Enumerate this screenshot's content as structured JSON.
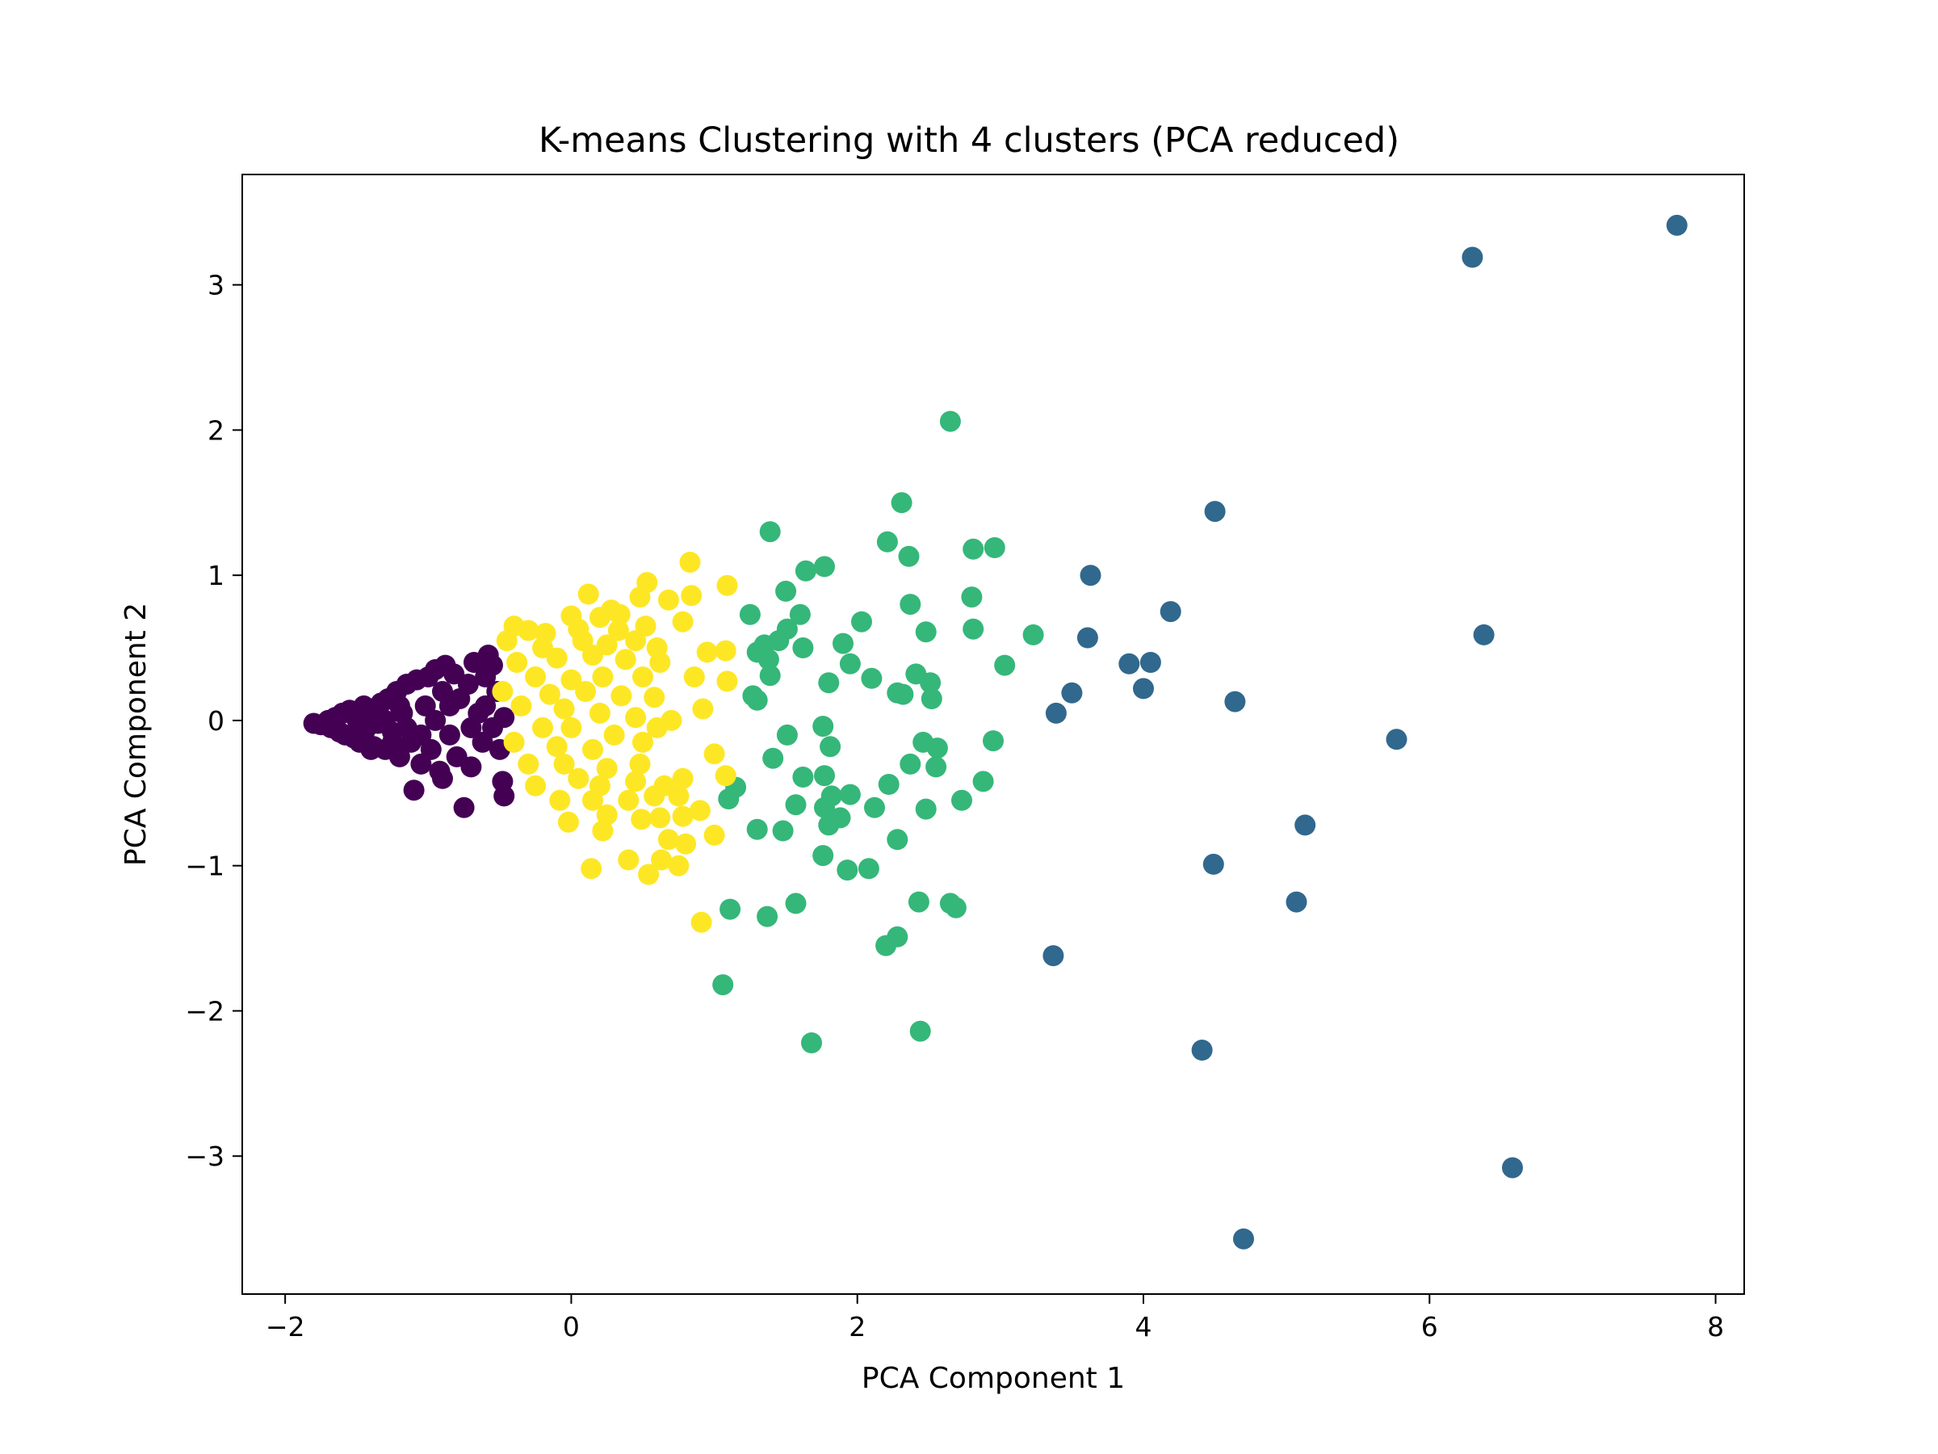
{
  "chart_data": {
    "type": "scatter",
    "title": "K-means Clustering with 4 clusters (PCA reduced)",
    "xlabel": "PCA Component 1",
    "ylabel": "PCA Component 2",
    "xlim": [
      -2.3,
      8.2
    ],
    "ylim": [
      -3.95,
      3.76
    ],
    "xticks": [
      -2,
      0,
      2,
      4,
      6,
      8
    ],
    "yticks": [
      -3,
      -2,
      -1,
      0,
      1,
      2,
      3
    ],
    "grid": false,
    "legend": "none",
    "series": [
      {
        "cluster": 0,
        "color": "#440154",
        "points": [
          [
            -1.8,
            -0.02
          ],
          [
            -1.75,
            -0.03
          ],
          [
            -1.7,
            0.0
          ],
          [
            -1.68,
            -0.05
          ],
          [
            -1.65,
            0.02
          ],
          [
            -1.62,
            -0.08
          ],
          [
            -1.6,
            0.05
          ],
          [
            -1.58,
            -0.1
          ],
          [
            -1.55,
            0.07
          ],
          [
            -1.52,
            -0.12
          ],
          [
            -1.5,
            0.01
          ],
          [
            -1.48,
            -0.15
          ],
          [
            -1.45,
            0.1
          ],
          [
            -1.43,
            -0.05
          ],
          [
            -1.4,
            0.08
          ],
          [
            -1.38,
            -0.18
          ],
          [
            -1.35,
            -0.02
          ],
          [
            -1.33,
            0.12
          ],
          [
            -1.3,
            -0.2
          ],
          [
            -1.28,
            0.15
          ],
          [
            -1.25,
            -0.08
          ],
          [
            -1.22,
            0.2
          ],
          [
            -1.2,
            -0.25
          ],
          [
            -1.18,
            0.05
          ],
          [
            -1.15,
            0.25
          ],
          [
            -1.12,
            -0.15
          ],
          [
            -1.1,
            -0.48
          ],
          [
            -1.08,
            0.28
          ],
          [
            -1.05,
            -0.3
          ],
          [
            -1.02,
            0.1
          ],
          [
            -1.0,
            0.3
          ],
          [
            -0.98,
            -0.2
          ],
          [
            -0.95,
            0.35
          ],
          [
            -0.92,
            -0.35
          ],
          [
            -0.9,
            0.2
          ],
          [
            -0.88,
            0.38
          ],
          [
            -0.85,
            -0.1
          ],
          [
            -0.82,
            0.32
          ],
          [
            -0.8,
            -0.25
          ],
          [
            -0.78,
            0.15
          ],
          [
            -0.75,
            -0.6
          ],
          [
            -0.72,
            0.25
          ],
          [
            -0.7,
            -0.32
          ],
          [
            -0.68,
            0.4
          ],
          [
            -0.65,
            0.05
          ],
          [
            -0.62,
            -0.15
          ],
          [
            -0.6,
            0.3
          ],
          [
            -0.58,
            0.45
          ],
          [
            -0.55,
            -0.05
          ],
          [
            -0.52,
            0.2
          ],
          [
            -0.5,
            -0.2
          ],
          [
            -0.48,
            -0.42
          ],
          [
            -0.47,
            -0.52
          ],
          [
            -0.47,
            0.02
          ],
          [
            -0.55,
            0.38
          ],
          [
            -1.3,
            0.0
          ],
          [
            -1.15,
            -0.05
          ],
          [
            -0.95,
            0.0
          ],
          [
            -0.85,
            0.1
          ],
          [
            -1.45,
            -0.1
          ],
          [
            -1.35,
            0.05
          ],
          [
            -1.25,
            -0.15
          ],
          [
            -1.05,
            -0.1
          ],
          [
            -0.7,
            -0.05
          ],
          [
            -0.6,
            0.1
          ],
          [
            -0.9,
            -0.4
          ],
          [
            -1.4,
            -0.2
          ],
          [
            -1.2,
            0.1
          ]
        ]
      },
      {
        "cluster": 1,
        "color": "#31688e",
        "points": [
          [
            7.73,
            3.41
          ],
          [
            6.3,
            3.19
          ],
          [
            6.38,
            0.59
          ],
          [
            6.58,
            -3.08
          ],
          [
            5.77,
            -0.13
          ],
          [
            5.13,
            -0.72
          ],
          [
            5.07,
            -1.25
          ],
          [
            4.7,
            -3.57
          ],
          [
            4.64,
            0.13
          ],
          [
            4.5,
            1.44
          ],
          [
            4.49,
            -0.99
          ],
          [
            4.41,
            -2.27
          ],
          [
            4.19,
            0.75
          ],
          [
            4.05,
            0.4
          ],
          [
            4.0,
            0.22
          ],
          [
            3.9,
            0.39
          ],
          [
            3.63,
            1.0
          ],
          [
            3.61,
            0.57
          ],
          [
            3.5,
            0.19
          ],
          [
            3.39,
            0.05
          ],
          [
            3.37,
            -1.62
          ]
        ]
      },
      {
        "cluster": 2,
        "color": "#35b779",
        "points": [
          [
            2.65,
            2.06
          ],
          [
            2.31,
            1.5
          ],
          [
            1.39,
            1.3
          ],
          [
            2.21,
            1.23
          ],
          [
            2.81,
            1.18
          ],
          [
            2.96,
            1.19
          ],
          [
            2.36,
            1.13
          ],
          [
            1.77,
            1.06
          ],
          [
            1.64,
            1.03
          ],
          [
            1.5,
            0.89
          ],
          [
            2.8,
            0.85
          ],
          [
            2.37,
            0.8
          ],
          [
            1.25,
            0.73
          ],
          [
            1.6,
            0.73
          ],
          [
            2.03,
            0.68
          ],
          [
            1.51,
            0.63
          ],
          [
            2.48,
            0.61
          ],
          [
            2.81,
            0.63
          ],
          [
            3.23,
            0.59
          ],
          [
            1.9,
            0.53
          ],
          [
            1.45,
            0.55
          ],
          [
            1.35,
            0.52
          ],
          [
            1.62,
            0.5
          ],
          [
            1.3,
            0.47
          ],
          [
            1.38,
            0.42
          ],
          [
            1.95,
            0.39
          ],
          [
            3.03,
            0.38
          ],
          [
            2.41,
            0.32
          ],
          [
            1.39,
            0.31
          ],
          [
            2.1,
            0.29
          ],
          [
            2.51,
            0.26
          ],
          [
            1.8,
            0.26
          ],
          [
            2.28,
            0.19
          ],
          [
            1.27,
            0.17
          ],
          [
            2.32,
            0.18
          ],
          [
            1.3,
            0.14
          ],
          [
            2.52,
            0.15
          ],
          [
            1.76,
            -0.04
          ],
          [
            1.51,
            -0.1
          ],
          [
            2.46,
            -0.15
          ],
          [
            2.95,
            -0.14
          ],
          [
            1.81,
            -0.18
          ],
          [
            2.56,
            -0.19
          ],
          [
            1.41,
            -0.26
          ],
          [
            2.55,
            -0.32
          ],
          [
            2.37,
            -0.3
          ],
          [
            1.62,
            -0.39
          ],
          [
            1.77,
            -0.38
          ],
          [
            2.22,
            -0.44
          ],
          [
            1.15,
            -0.46
          ],
          [
            2.88,
            -0.42
          ],
          [
            1.82,
            -0.52
          ],
          [
            1.95,
            -0.51
          ],
          [
            1.1,
            -0.54
          ],
          [
            2.73,
            -0.55
          ],
          [
            1.57,
            -0.58
          ],
          [
            2.12,
            -0.6
          ],
          [
            1.77,
            -0.6
          ],
          [
            2.48,
            -0.61
          ],
          [
            1.88,
            -0.67
          ],
          [
            1.8,
            -0.72
          ],
          [
            1.3,
            -0.75
          ],
          [
            1.48,
            -0.76
          ],
          [
            2.28,
            -0.82
          ],
          [
            1.76,
            -0.93
          ],
          [
            1.93,
            -1.03
          ],
          [
            2.08,
            -1.02
          ],
          [
            1.11,
            -1.3
          ],
          [
            1.57,
            -1.26
          ],
          [
            2.43,
            -1.25
          ],
          [
            2.65,
            -1.26
          ],
          [
            2.69,
            -1.29
          ],
          [
            1.37,
            -1.35
          ],
          [
            2.28,
            -1.49
          ],
          [
            2.2,
            -1.55
          ],
          [
            1.06,
            -1.82
          ],
          [
            2.44,
            -2.14
          ],
          [
            1.68,
            -2.22
          ]
        ]
      },
      {
        "cluster": 3,
        "color": "#fde725",
        "points": [
          [
            0.83,
            1.09
          ],
          [
            1.09,
            0.93
          ],
          [
            0.53,
            0.95
          ],
          [
            0.12,
            0.87
          ],
          [
            0.48,
            0.85
          ],
          [
            0.68,
            0.83
          ],
          [
            0.84,
            0.86
          ],
          [
            0.28,
            0.76
          ],
          [
            0.34,
            0.73
          ],
          [
            0.2,
            0.71
          ],
          [
            0.0,
            0.72
          ],
          [
            -0.4,
            0.65
          ],
          [
            -0.3,
            0.62
          ],
          [
            -0.18,
            0.6
          ],
          [
            0.05,
            0.63
          ],
          [
            0.33,
            0.62
          ],
          [
            0.52,
            0.65
          ],
          [
            0.78,
            0.68
          ],
          [
            -0.45,
            0.55
          ],
          [
            -0.2,
            0.5
          ],
          [
            0.08,
            0.55
          ],
          [
            0.25,
            0.52
          ],
          [
            0.45,
            0.55
          ],
          [
            0.6,
            0.5
          ],
          [
            0.95,
            0.47
          ],
          [
            1.08,
            0.48
          ],
          [
            -0.38,
            0.4
          ],
          [
            -0.1,
            0.43
          ],
          [
            0.15,
            0.45
          ],
          [
            0.38,
            0.42
          ],
          [
            0.62,
            0.4
          ],
          [
            -0.25,
            0.3
          ],
          [
            0.0,
            0.28
          ],
          [
            0.22,
            0.3
          ],
          [
            0.5,
            0.3
          ],
          [
            0.86,
            0.3
          ],
          [
            1.09,
            0.27
          ],
          [
            -0.48,
            0.2
          ],
          [
            -0.15,
            0.18
          ],
          [
            0.1,
            0.2
          ],
          [
            0.35,
            0.17
          ],
          [
            0.58,
            0.16
          ],
          [
            0.92,
            0.08
          ],
          [
            -0.35,
            0.1
          ],
          [
            -0.05,
            0.08
          ],
          [
            0.2,
            0.05
          ],
          [
            0.45,
            0.02
          ],
          [
            0.7,
            0.0
          ],
          [
            -0.2,
            -0.05
          ],
          [
            0.0,
            -0.05
          ],
          [
            0.3,
            -0.1
          ],
          [
            0.6,
            -0.05
          ],
          [
            -0.4,
            -0.15
          ],
          [
            -0.1,
            -0.18
          ],
          [
            0.15,
            -0.2
          ],
          [
            0.5,
            -0.15
          ],
          [
            1.0,
            -0.23
          ],
          [
            -0.3,
            -0.3
          ],
          [
            -0.05,
            -0.3
          ],
          [
            0.25,
            -0.33
          ],
          [
            0.48,
            -0.3
          ],
          [
            1.08,
            -0.38
          ],
          [
            -0.25,
            -0.45
          ],
          [
            0.05,
            -0.4
          ],
          [
            0.2,
            -0.45
          ],
          [
            0.45,
            -0.42
          ],
          [
            0.65,
            -0.45
          ],
          [
            0.78,
            -0.4
          ],
          [
            -0.08,
            -0.55
          ],
          [
            0.15,
            -0.55
          ],
          [
            0.4,
            -0.55
          ],
          [
            0.58,
            -0.52
          ],
          [
            0.75,
            -0.52
          ],
          [
            0.9,
            -0.62
          ],
          [
            -0.02,
            -0.7
          ],
          [
            0.25,
            -0.65
          ],
          [
            0.49,
            -0.68
          ],
          [
            0.62,
            -0.67
          ],
          [
            0.78,
            -0.66
          ],
          [
            0.22,
            -0.76
          ],
          [
            0.68,
            -0.82
          ],
          [
            0.8,
            -0.85
          ],
          [
            1.0,
            -0.79
          ],
          [
            0.4,
            -0.96
          ],
          [
            0.63,
            -0.96
          ],
          [
            0.75,
            -1.0
          ],
          [
            0.14,
            -1.02
          ],
          [
            0.54,
            -1.06
          ],
          [
            0.91,
            -1.39
          ]
        ]
      }
    ]
  }
}
